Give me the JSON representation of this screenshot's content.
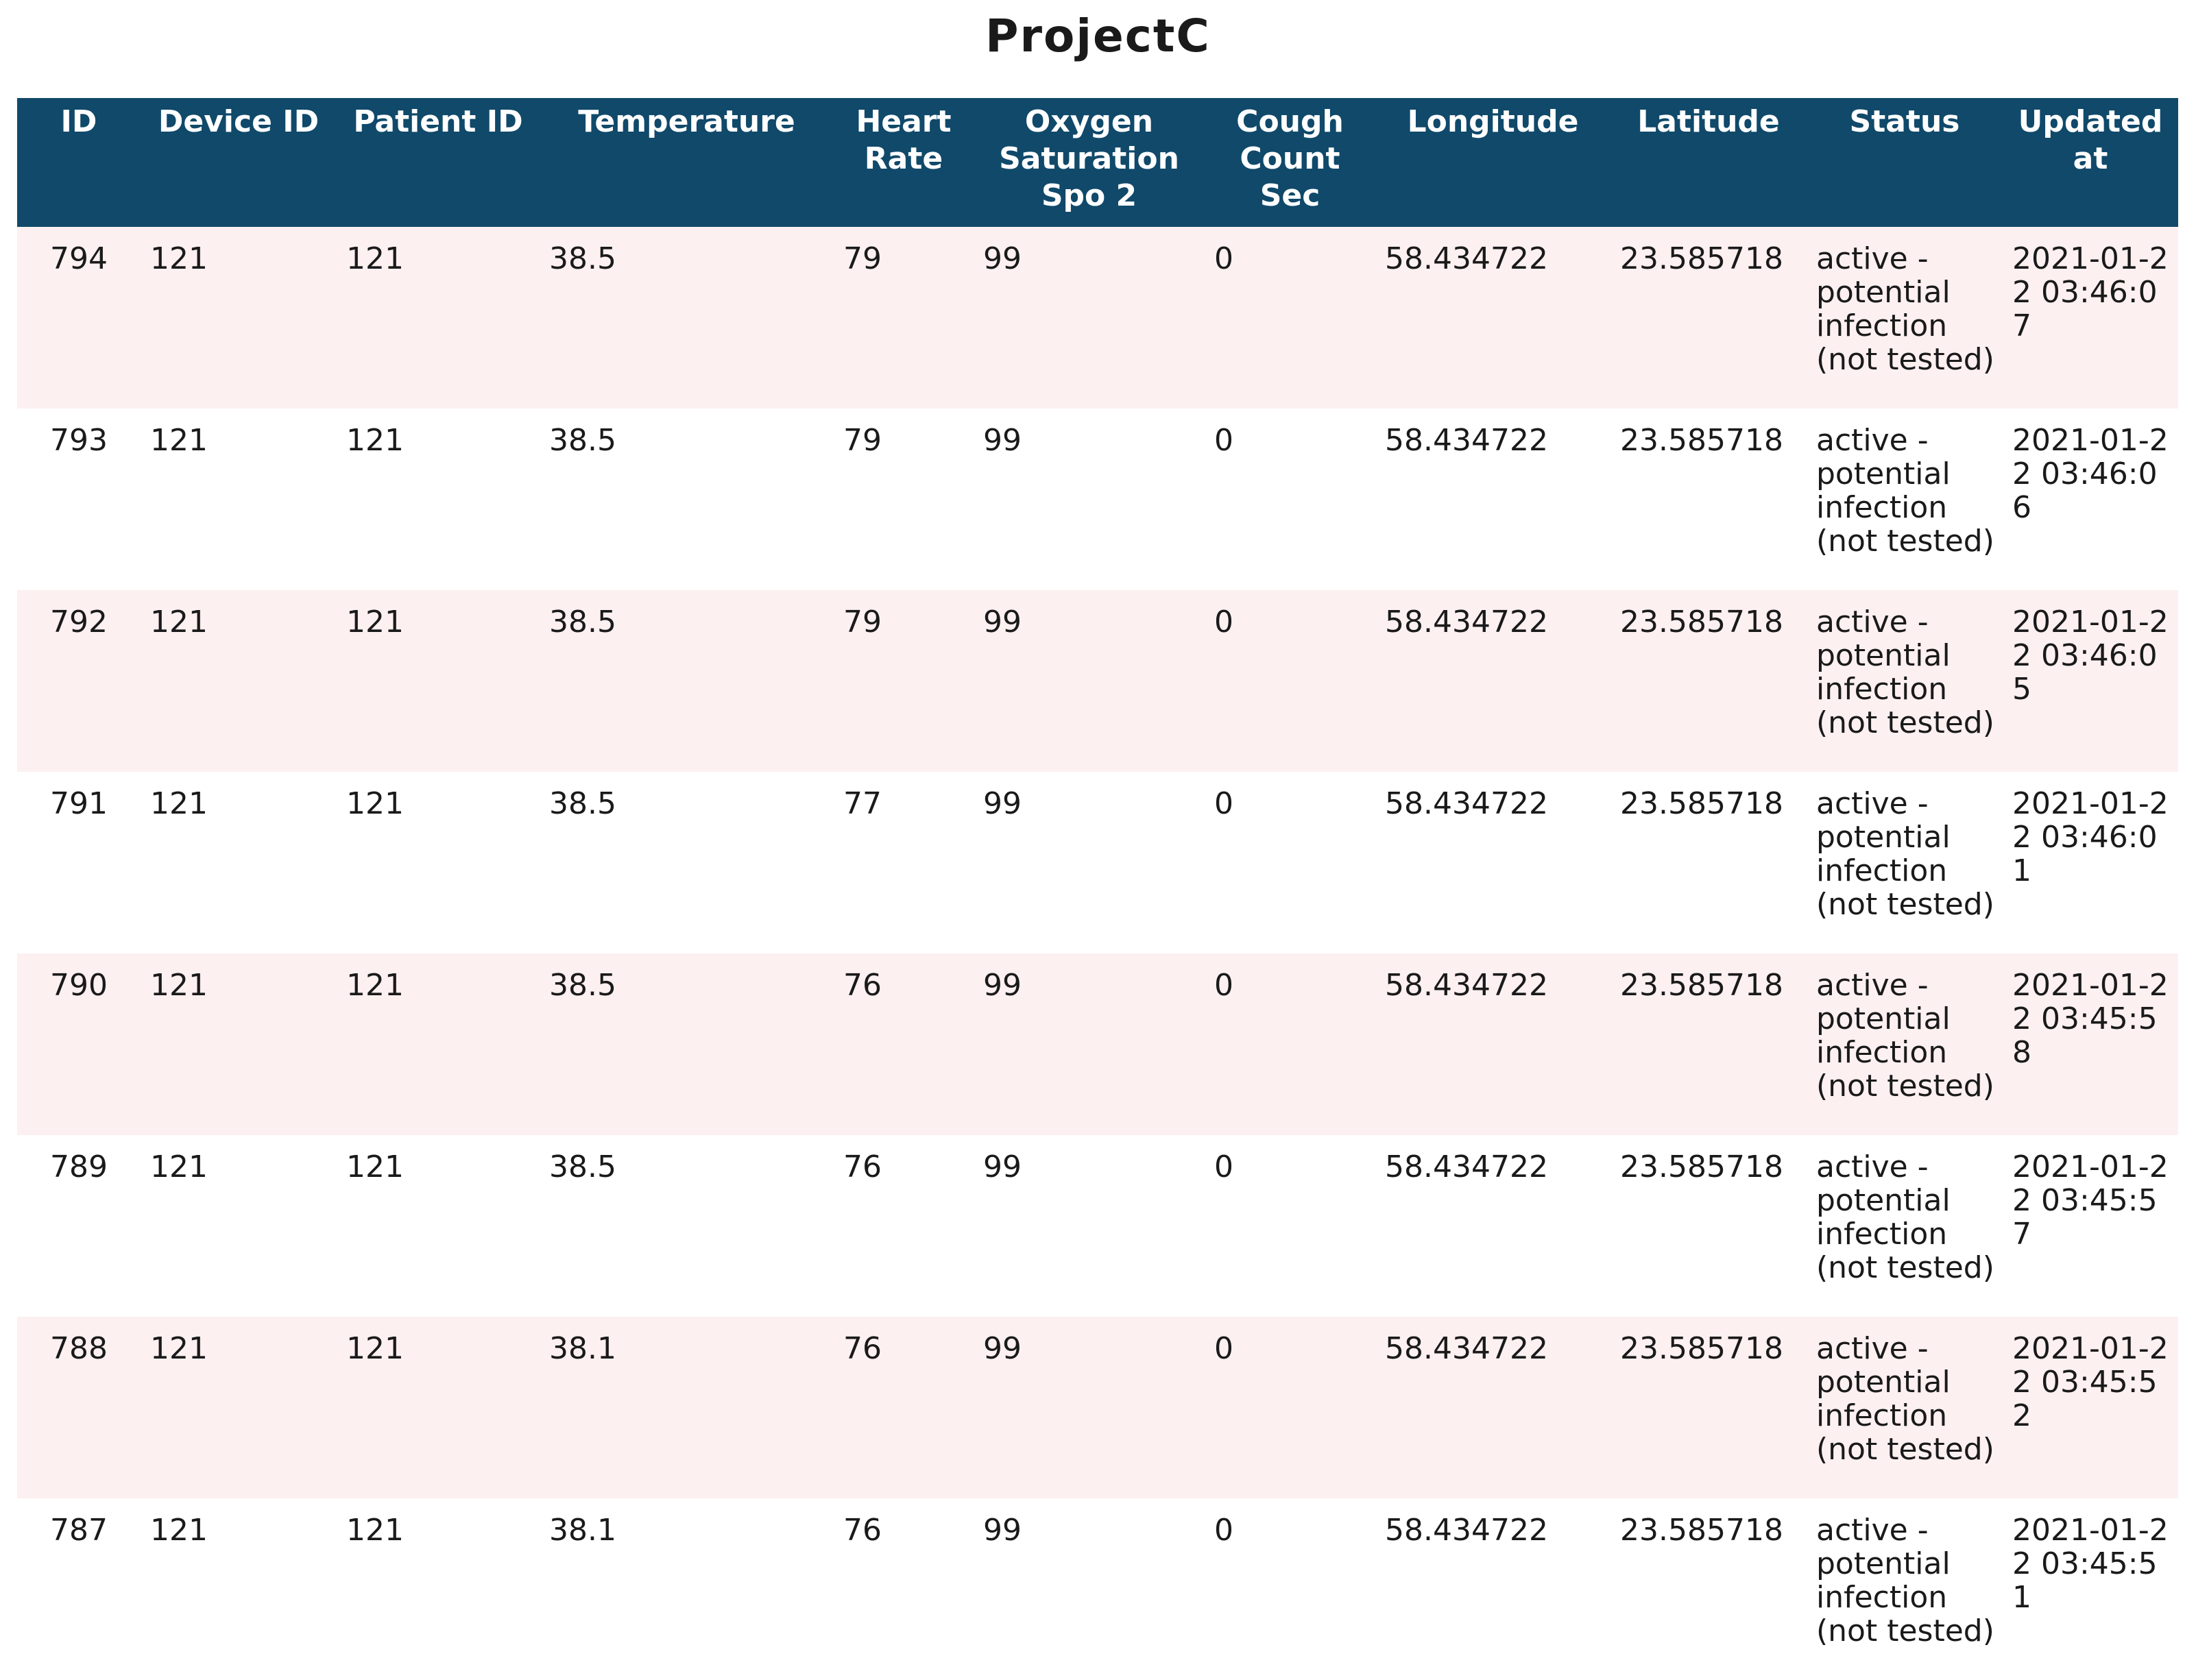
{
  "title": "ProjectC",
  "table": {
    "header": [
      "ID",
      "Device ID",
      "Patient ID",
      "Temperature",
      "Heart Rate",
      "Oxygen Saturation Spo 2",
      "Cough Count Sec",
      "Longitude",
      "Latitude",
      "Status",
      "Updated at"
    ],
    "rows": [
      [
        "794",
        "121",
        "121",
        "38.5",
        "79",
        "99",
        "0",
        "58.434722",
        "23.585718",
        "active - potential infection (not tested)",
        "2021-01-22 03:46:07"
      ],
      [
        "793",
        "121",
        "121",
        "38.5",
        "79",
        "99",
        "0",
        "58.434722",
        "23.585718",
        "active - potential infection (not tested)",
        "2021-01-22 03:46:06"
      ],
      [
        "792",
        "121",
        "121",
        "38.5",
        "79",
        "99",
        "0",
        "58.434722",
        "23.585718",
        "active - potential infection (not tested)",
        "2021-01-22 03:46:05"
      ],
      [
        "791",
        "121",
        "121",
        "38.5",
        "77",
        "99",
        "0",
        "58.434722",
        "23.585718",
        "active - potential infection (not tested)",
        "2021-01-22 03:46:01"
      ],
      [
        "790",
        "121",
        "121",
        "38.5",
        "76",
        "99",
        "0",
        "58.434722",
        "23.585718",
        "active - potential infection (not tested)",
        "2021-01-22 03:45:58"
      ],
      [
        "789",
        "121",
        "121",
        "38.5",
        "76",
        "99",
        "0",
        "58.434722",
        "23.585718",
        "active - potential infection (not tested)",
        "2021-01-22 03:45:57"
      ],
      [
        "788",
        "121",
        "121",
        "38.1",
        "76",
        "99",
        "0",
        "58.434722",
        "23.585718",
        "active - potential infection (not tested)",
        "2021-01-22 03:45:52"
      ],
      [
        "787",
        "121",
        "121",
        "38.1",
        "76",
        "99",
        "0",
        "58.434722",
        "23.585718",
        "active - potential infection (not tested)",
        "2021-01-22 03:45:51"
      ]
    ]
  }
}
